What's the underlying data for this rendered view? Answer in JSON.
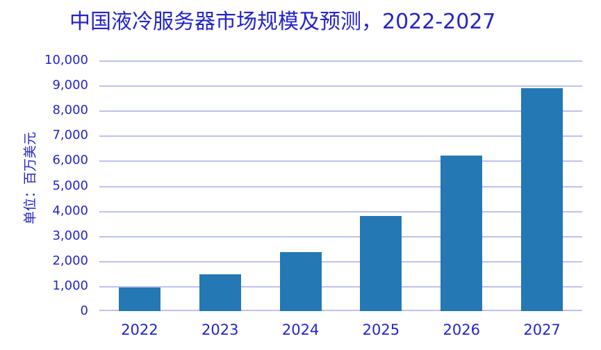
{
  "chart_data": {
    "type": "bar",
    "title": "中国液冷服务器市场规模及预测，2022-2027",
    "categories": [
      "2022",
      "2023",
      "2024",
      "2025",
      "2026",
      "2027"
    ],
    "values": [
      950,
      1470,
      2360,
      3800,
      6200,
      8900
    ],
    "xlabel": "",
    "ylabel": "单位：百万美元",
    "ylim": [
      0,
      10000
    ],
    "ytick_step": 1000,
    "ytick_labels": [
      "0",
      "1,000",
      "2,000",
      "3,000",
      "4,000",
      "5,000",
      "6,000",
      "7,000",
      "8,000",
      "9,000",
      "10,000"
    ],
    "grid": "horizontal",
    "legend": "none",
    "colors": {
      "bar": "#2478B4",
      "text": "#2424CC",
      "gridline": "#BDC1F0"
    }
  }
}
